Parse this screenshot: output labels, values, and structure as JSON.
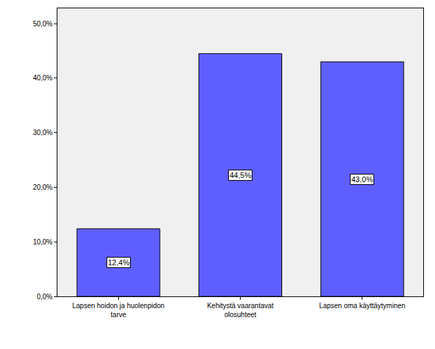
{
  "chart_data": {
    "type": "bar",
    "categories": [
      "Lapsen hoidon ja huolenpidon tarve",
      "Kehitystä vaarantavat olosuhteet",
      "Lapsen oma käyttäytyminen"
    ],
    "values": [
      12.4,
      44.5,
      43.0
    ],
    "value_labels": [
      "12,4%",
      "44,5%",
      "43,0%"
    ],
    "color": "#5f5fff",
    "ylim": [
      0,
      52.8
    ],
    "yticks": [
      {
        "value": 0,
        "label": "0,0%"
      },
      {
        "value": 10,
        "label": "10,0%"
      },
      {
        "value": 20,
        "label": "20,0%"
      },
      {
        "value": 30,
        "label": "30,0%"
      },
      {
        "value": 40,
        "label": "40,0%"
      },
      {
        "value": 50,
        "label": "50,0%"
      }
    ],
    "grid": false,
    "data_labels": true
  }
}
